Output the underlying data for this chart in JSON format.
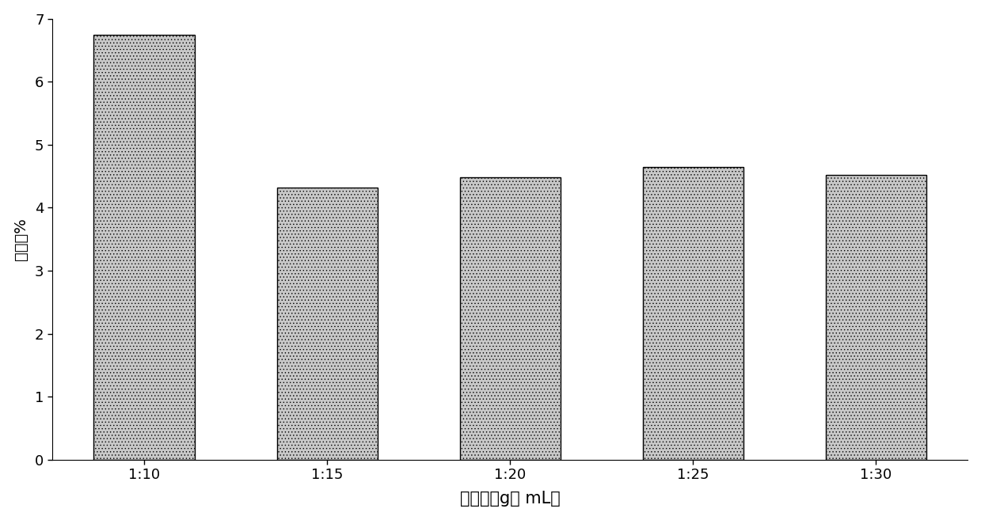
{
  "categories": [
    "1:10",
    "1:15",
    "1:20",
    "1:25",
    "1:30"
  ],
  "values": [
    6.75,
    4.32,
    4.48,
    4.65,
    4.52
  ],
  "bar_color": "#c8c8c8",
  "hatch": "....",
  "xlabel": "固液比（g： mL）",
  "ylabel": "残留率%",
  "ylim": [
    0,
    7
  ],
  "yticks": [
    0,
    1,
    2,
    3,
    4,
    5,
    6,
    7
  ],
  "title": "",
  "bar_width": 0.55,
  "background_color": "#ffffff",
  "figsize": [
    12.39,
    6.57
  ],
  "dpi": 100
}
